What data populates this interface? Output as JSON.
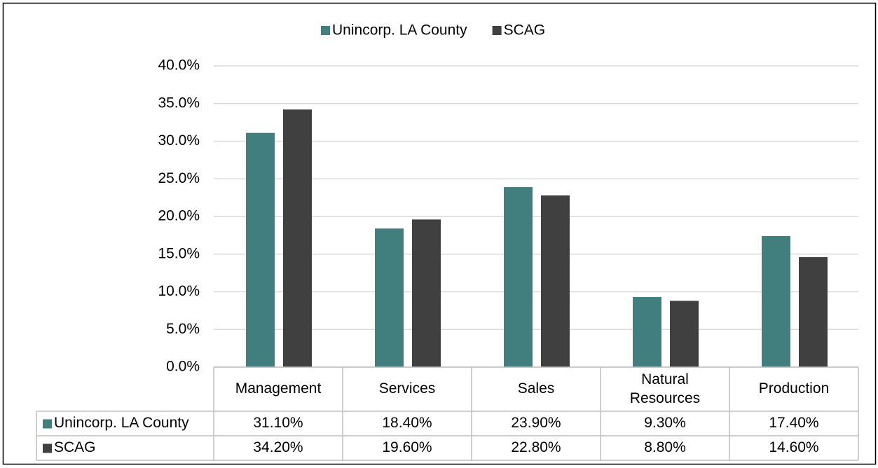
{
  "chart_data": {
    "type": "bar",
    "categories": [
      "Management",
      "Services",
      "Sales",
      "Natural Resources",
      "Production"
    ],
    "series": [
      {
        "name": "Unincorp. LA County",
        "color": "#417f7f",
        "values": [
          31.1,
          18.4,
          23.9,
          9.3,
          17.4
        ],
        "value_labels": [
          "31.10%",
          "18.40%",
          "23.90%",
          "9.30%",
          "17.40%"
        ]
      },
      {
        "name": "SCAG",
        "color": "#404040",
        "values": [
          34.2,
          19.6,
          22.8,
          8.8,
          14.6
        ],
        "value_labels": [
          "34.20%",
          "19.60%",
          "22.80%",
          "8.80%",
          "14.60%"
        ]
      }
    ],
    "ylim": [
      0,
      40
    ],
    "yticks": [
      {
        "value": 0,
        "label": "0.0%"
      },
      {
        "value": 5,
        "label": "5.0%"
      },
      {
        "value": 10,
        "label": "10.0%"
      },
      {
        "value": 15,
        "label": "15.0%"
      },
      {
        "value": 20,
        "label": "20.0%"
      },
      {
        "value": 25,
        "label": "25.0%"
      },
      {
        "value": 30,
        "label": "30.0%"
      },
      {
        "value": 35,
        "label": "35.0%"
      },
      {
        "value": 40,
        "label": "40.0%"
      }
    ],
    "grid": true,
    "legend": "top"
  }
}
